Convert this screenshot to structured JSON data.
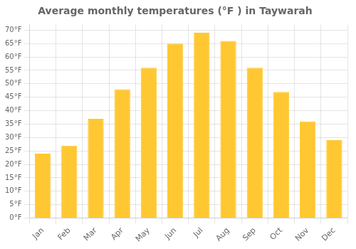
{
  "chart_data": {
    "type": "bar",
    "title": "Average monthly temperatures (°F ) in Taywarah",
    "categories": [
      "Jan",
      "Feb",
      "Mar",
      "Apr",
      "May",
      "Jun",
      "Jul",
      "Aug",
      "Sep",
      "Oct",
      "Nov",
      "Dec"
    ],
    "values": [
      24,
      27,
      37,
      48,
      56,
      65,
      69,
      66,
      56,
      47,
      36,
      29
    ],
    "color": "#FFC832",
    "ylim": [
      0,
      72
    ],
    "yticks": [
      {
        "value": 0,
        "label": "0°F"
      },
      {
        "value": 5,
        "label": "5°F"
      },
      {
        "value": 10,
        "label": "10°F"
      },
      {
        "value": 15,
        "label": "15°F"
      },
      {
        "value": 20,
        "label": "20°F"
      },
      {
        "value": 25,
        "label": "25°F"
      },
      {
        "value": 30,
        "label": "30°F"
      },
      {
        "value": 35,
        "label": "35°F"
      },
      {
        "value": 40,
        "label": "40°F"
      },
      {
        "value": 45,
        "label": "45°F"
      },
      {
        "value": 50,
        "label": "50°F"
      },
      {
        "value": 55,
        "label": "55°F"
      },
      {
        "value": 60,
        "label": "60°F"
      },
      {
        "value": 65,
        "label": "65°F"
      },
      {
        "value": 70,
        "label": "70°F"
      }
    ],
    "grid": true
  }
}
